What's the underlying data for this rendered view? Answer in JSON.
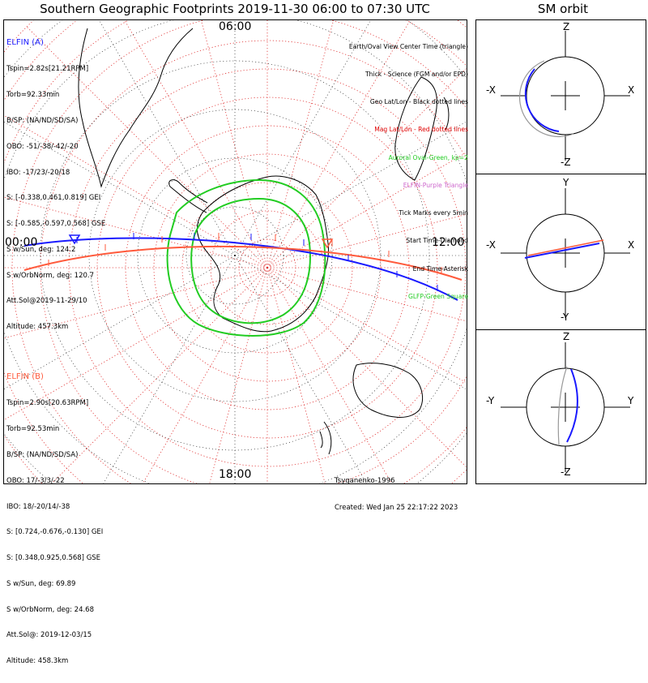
{
  "title": "Southern Geographic Footprints 2019-11-30 06:00 to 07:30 UTC",
  "sm_title": "SM orbit",
  "time_labels": {
    "top": "06:00",
    "left": "00:00",
    "right": "12:00",
    "bottom": "18:00"
  },
  "elfin_a": {
    "name": "ELFIN (A)",
    "color": "#1a1aff",
    "lines": [
      "Tspin=2.82s[21.21RPM]",
      "Torb=92.33min",
      "B/SP: (NA/ND/SD/SA)",
      "OBO: -51/-38/-42/-20",
      "IBO: -17/23/-20/18",
      "S: [-0.338,0.461,0.819] GEI",
      "S: [-0.585,-0.597,0.568] GSE",
      "S w/Sun, deg: 124.2",
      "S w/OrbNorm, deg: 120.7",
      "Att.Sol@2019-11-29/10",
      "Altitude: 457.3km"
    ]
  },
  "elfin_b": {
    "name": "ELFIN (B)",
    "color": "#ff5a3c",
    "lines": [
      "Tspin=2.90s[20.63RPM]",
      "Torb=92.53min",
      "B/SP: (NA/ND/SD/SA)",
      "OBO: 17/-3/3/-22",
      "IBO: 18/-20/14/-38",
      "S: [0.724,-0.676,-0.130] GEI",
      "S: [0.348,0.925,0.568] GSE",
      "S w/Sun, deg: 69.89",
      "S w/OrbNorm, deg: 24.68",
      "Att.Sol@: 2019-12-03/15",
      "Altitude: 458.3km"
    ]
  },
  "legend": [
    {
      "text": "Earth/Oval View Center Time (triangle)",
      "color": "#000000"
    },
    {
      "text": "Thick - Science (FGM and/or EPD)",
      "color": "#000000"
    },
    {
      "text": "Geo Lat/Lon - Black dotted lines",
      "color": "#000000"
    },
    {
      "text": "Mag Lat/Lon - Red dotted lines",
      "color": "#e00000"
    },
    {
      "text": "Auroral Oval-Green, kp=2",
      "color": "#22cc22"
    },
    {
      "text": "ELFIN-Purple Triangle",
      "color": "#cc66cc"
    },
    {
      "text": "Tick Marks every 5min",
      "color": "#000000"
    },
    {
      "text": "Start Time-Diamond",
      "color": "#000000"
    },
    {
      "text": "End Time-Asterisk",
      "color": "#000000"
    },
    {
      "text": "GLFP-Green Square",
      "color": "#22cc22"
    }
  ],
  "credit": [
    "Tsyganenko-1996",
    "Created: Wed Jan 25 22:17:22 2023"
  ],
  "sm_panels": [
    {
      "top": "Z",
      "bottom": "-Z",
      "left": "-X",
      "right": "X"
    },
    {
      "top": "Y",
      "bottom": "-Y",
      "left": "-X",
      "right": "X"
    },
    {
      "top": "Z",
      "bottom": "-Z",
      "left": "-Y",
      "right": "Y"
    }
  ]
}
